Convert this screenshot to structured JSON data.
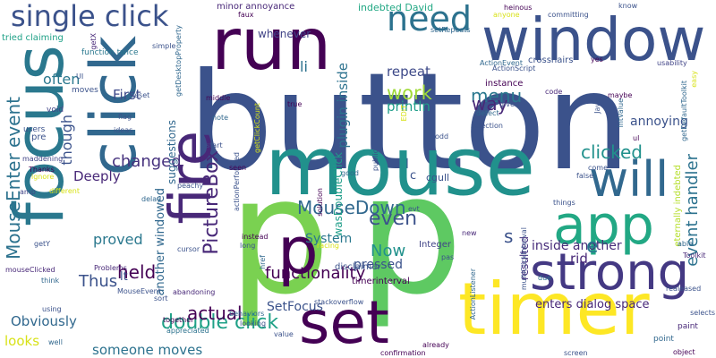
{
  "words": [
    {
      "text": "button",
      "color": "#3b528b",
      "orient": "h"
    },
    {
      "text": "p",
      "color": "#7ad151",
      "orient": "h"
    },
    {
      "text": "p",
      "color": "#5ec962",
      "orient": "h"
    },
    {
      "text": "mouse",
      "color": "#21918c",
      "orient": "h"
    },
    {
      "text": "timer",
      "color": "#fde725",
      "orient": "h"
    },
    {
      "text": "click",
      "color": "#31688e",
      "orient": "v"
    },
    {
      "text": "focus",
      "color": "#2a788e",
      "orient": "v"
    },
    {
      "text": "run",
      "color": "#440154",
      "orient": "h"
    },
    {
      "text": "window",
      "color": "#3b528b",
      "orient": "h"
    },
    {
      "text": "fire",
      "color": "#482878",
      "orient": "v"
    },
    {
      "text": "set",
      "color": "#440154",
      "orient": "h"
    },
    {
      "text": "app",
      "color": "#22a884",
      "orient": "h"
    },
    {
      "text": "strong",
      "color": "#443983",
      "orient": "h"
    },
    {
      "text": "will",
      "color": "#31688e",
      "orient": "h"
    },
    {
      "text": "need",
      "color": "#2c728e",
      "orient": "h"
    },
    {
      "text": "single click",
      "color": "#3b528b",
      "orient": "h"
    },
    {
      "text": "p",
      "color": "#440154",
      "orient": "h"
    },
    {
      "text": "double click",
      "color": "#1fa187",
      "orient": "h"
    },
    {
      "text": "MouseDown",
      "color": "#31688e",
      "orient": "h"
    },
    {
      "text": "even",
      "color": "#3b528b",
      "orient": "h"
    },
    {
      "text": "clicked",
      "color": "#21918c",
      "orient": "h"
    },
    {
      "text": "event handler",
      "color": "#2c728e",
      "orient": "v"
    },
    {
      "text": "work",
      "color": "#a0da39",
      "orient": "h"
    },
    {
      "text": "menu",
      "color": "#2a788e",
      "orient": "h"
    },
    {
      "text": "PictureBox",
      "color": "#482878",
      "orient": "v"
    },
    {
      "text": "MouseEnter event",
      "color": "#2c728e",
      "orient": "v"
    },
    {
      "text": "plugin inside",
      "color": "#2c728e",
      "orient": "v"
    },
    {
      "text": "held",
      "color": "#440154",
      "orient": "h"
    },
    {
      "text": "actual",
      "color": "#440154",
      "orient": "h"
    },
    {
      "text": "changed",
      "color": "#46327e",
      "orient": "h"
    },
    {
      "text": "Thus",
      "color": "#3b528b",
      "orient": "h"
    },
    {
      "text": "Now",
      "color": "#21918c",
      "orient": "h"
    },
    {
      "text": "functionality",
      "color": "#440154",
      "orient": "h"
    },
    {
      "text": "SetFocus",
      "color": "#3b528b",
      "orient": "h"
    },
    {
      "text": "proved",
      "color": "#2a788e",
      "orient": "h"
    },
    {
      "text": "Obviously",
      "color": "#31688e",
      "orient": "h"
    },
    {
      "text": "looks",
      "color": "#d8e219",
      "orient": "h"
    },
    {
      "text": "someone moves",
      "color": "#2c728e",
      "orient": "h"
    },
    {
      "text": "Deeply",
      "color": "#482878",
      "orient": "h"
    },
    {
      "text": "way",
      "color": "#482878",
      "orient": "h"
    },
    {
      "text": "repeat",
      "color": "#3e4a89",
      "orient": "h"
    },
    {
      "text": "annoying",
      "color": "#3b528b",
      "orient": "h"
    },
    {
      "text": "often",
      "color": "#2a788e",
      "orient": "h"
    },
    {
      "text": "li",
      "color": "#2c728e",
      "orient": "h"
    },
    {
      "text": "enters dialog space",
      "color": "#482878",
      "orient": "h"
    },
    {
      "text": "System",
      "color": "#2a788e",
      "orient": "h"
    },
    {
      "text": "pressed",
      "color": "#3b528b",
      "orient": "h"
    },
    {
      "text": "First",
      "color": "#3e4a89",
      "orient": "h"
    },
    {
      "text": "inside another",
      "color": "#472c7a",
      "orient": "h"
    },
    {
      "text": "rid",
      "color": "#482878",
      "orient": "h"
    },
    {
      "text": "e",
      "color": "#2a788e",
      "orient": "h"
    },
    {
      "text": "s",
      "color": "#3b528b",
      "orient": "h"
    },
    {
      "text": "lt",
      "color": "#3b528b",
      "orient": "h"
    },
    {
      "text": "println",
      "color": "#1f9e89",
      "orient": "h"
    },
    {
      "text": "though",
      "color": "#3b528b",
      "orient": "v"
    },
    {
      "text": "suggestions",
      "color": "#31688e",
      "orient": "v"
    },
    {
      "text": "another windowed",
      "color": "#31688e",
      "orient": "v"
    },
    {
      "text": "wasDoubleClick",
      "color": "#1f9e89",
      "orient": "v"
    },
    {
      "text": "resulted",
      "color": "#46327e",
      "orient": "v"
    },
    {
      "text": "whenever",
      "color": "#414487",
      "orient": "h"
    },
    {
      "text": "indebted David",
      "color": "#22a884",
      "orient": "h"
    },
    {
      "text": "minor annoyance",
      "color": "#482878",
      "orient": "h"
    },
    {
      "text": "tried claiming",
      "color": "#1fa187",
      "orient": "h"
    },
    {
      "text": "function twice",
      "color": "#2a788e",
      "orient": "h"
    },
    {
      "text": "instance",
      "color": "#440154",
      "orient": "h"
    },
    {
      "text": "timerinterval",
      "color": "#440154",
      "orient": "h"
    },
    {
      "text": "disclaimer",
      "color": "#3b528b",
      "orient": "h"
    },
    {
      "text": "Integer",
      "color": "#414487",
      "orient": "h"
    },
    {
      "text": "cgull",
      "color": "#3b528b",
      "orient": "h"
    },
    {
      "text": "c",
      "color": "#3b528b",
      "orient": "h"
    },
    {
      "text": "eternally indebted",
      "color": "#b5de2b",
      "orient": "v"
    },
    {
      "text": "moves",
      "color": "#3b528b",
      "orient": "h"
    },
    {
      "text": "void",
      "color": "#414487",
      "orient": "h"
    },
    {
      "text": "pre",
      "color": "#3b528b",
      "orient": "h"
    },
    {
      "text": "users",
      "color": "#3b528b",
      "orient": "h"
    },
    {
      "text": "maddening",
      "color": "#414487",
      "orient": "h"
    },
    {
      "text": "Thanks",
      "color": "#440154",
      "orient": "h"
    },
    {
      "text": "ignore",
      "color": "#d8e219",
      "orient": "h"
    },
    {
      "text": "amp",
      "color": "#414487",
      "orient": "h"
    },
    {
      "text": "different",
      "color": "#d8e219",
      "orient": "h"
    },
    {
      "text": "getY",
      "color": "#3b528b",
      "orient": "h"
    },
    {
      "text": "mouseClicked",
      "color": "#482878",
      "orient": "h"
    },
    {
      "text": "think",
      "color": "#31688e",
      "orient": "h"
    },
    {
      "text": "using",
      "color": "#3b528b",
      "orient": "h"
    },
    {
      "text": "well",
      "color": "#31688e",
      "orient": "h"
    },
    {
      "text": "Problems",
      "color": "#482878",
      "orient": "h"
    },
    {
      "text": "MouseEvent",
      "color": "#3b528b",
      "orient": "h"
    },
    {
      "text": "together",
      "color": "#440154",
      "orient": "h"
    },
    {
      "text": "appreciated",
      "color": "#2c728e",
      "orient": "h"
    },
    {
      "text": "abandoning",
      "color": "#482878",
      "orient": "h"
    },
    {
      "text": "sort",
      "color": "#3b528b",
      "orient": "h"
    },
    {
      "text": "behaviors",
      "color": "#31688e",
      "orient": "h"
    },
    {
      "text": "looking",
      "color": "#3b528b",
      "orient": "h"
    },
    {
      "text": "value",
      "color": "#3b528b",
      "orient": "h"
    },
    {
      "text": "already",
      "color": "#440154",
      "orient": "h"
    },
    {
      "text": "confirmation",
      "color": "#440154",
      "orient": "h"
    },
    {
      "text": "stackoverflow",
      "color": "#3b528b",
      "orient": "h"
    },
    {
      "text": "href",
      "color": "#31688e",
      "orient": "v"
    },
    {
      "text": "long",
      "color": "#3b528b",
      "orient": "h"
    },
    {
      "text": "instead",
      "color": "#440154",
      "orient": "h"
    },
    {
      "text": "cursor",
      "color": "#3b528b",
      "orient": "h"
    },
    {
      "text": "pas",
      "color": "#3b528b",
      "orient": "h"
    },
    {
      "text": "new",
      "color": "#482878",
      "orient": "h"
    },
    {
      "text": "racing",
      "color": "#d8e219",
      "orient": "h"
    },
    {
      "text": "due",
      "color": "#2c728e",
      "orient": "h"
    },
    {
      "text": "point",
      "color": "#31688e",
      "orient": "h"
    },
    {
      "text": "paint",
      "color": "#482878",
      "orient": "h"
    },
    {
      "text": "selects",
      "color": "#3b528b",
      "orient": "h"
    },
    {
      "text": "object",
      "color": "#440154",
      "orient": "h"
    },
    {
      "text": "screen",
      "color": "#3b528b",
      "orient": "h"
    },
    {
      "text": "realeased",
      "color": "#3b528b",
      "orient": "h"
    },
    {
      "text": "Toolkit",
      "color": "#482878",
      "orient": "h"
    },
    {
      "text": "able",
      "color": "#31688e",
      "orient": "h"
    },
    {
      "text": "things",
      "color": "#3b528b",
      "orient": "h"
    },
    {
      "text": "false",
      "color": "#3b528b",
      "orient": "h"
    },
    {
      "text": "come",
      "color": "#3b528b",
      "orient": "h"
    },
    {
      "text": "ul",
      "color": "#440154",
      "orient": "h"
    },
    {
      "text": "maybe",
      "color": "#440154",
      "orient": "h"
    },
    {
      "text": "intValue",
      "color": "#31688e",
      "orient": "v"
    },
    {
      "text": "Java",
      "color": "#3b528b",
      "orient": "v"
    },
    {
      "text": "code",
      "color": "#482878",
      "orient": "h"
    },
    {
      "text": "given",
      "color": "#3b528b",
      "orient": "h"
    },
    {
      "text": "ActionScript",
      "color": "#3b528b",
      "orient": "h"
    },
    {
      "text": "detect",
      "color": "#31688e",
      "orient": "h"
    },
    {
      "text": "selection",
      "color": "#3b528b",
      "orient": "h"
    },
    {
      "text": "odd",
      "color": "#3b528b",
      "orient": "h"
    },
    {
      "text": "usability",
      "color": "#414487",
      "orient": "h"
    },
    {
      "text": "easy",
      "color": "#d8e219",
      "orient": "v"
    },
    {
      "text": "getDefaultToolkit",
      "color": "#31688e",
      "orient": "v"
    },
    {
      "text": "know",
      "color": "#3b528b",
      "orient": "h"
    },
    {
      "text": "committing",
      "color": "#3b528b",
      "orient": "h"
    },
    {
      "text": "heinous",
      "color": "#440154",
      "orient": "h"
    },
    {
      "text": "anyone",
      "color": "#d8e219",
      "orient": "h"
    },
    {
      "text": "setRepeats",
      "color": "#31688e",
      "orient": "h"
    },
    {
      "text": "ActionEvent",
      "color": "#31688e",
      "orient": "h"
    },
    {
      "text": "crosshairs",
      "color": "#3b528b",
      "orient": "h"
    },
    {
      "text": "yes",
      "color": "#440154",
      "orient": "h"
    },
    {
      "text": "faux",
      "color": "#440154",
      "orient": "h"
    },
    {
      "text": "simple",
      "color": "#3b528b",
      "orient": "h"
    },
    {
      "text": "getDesktopProperty",
      "color": "#31688e",
      "orient": "v"
    },
    {
      "text": "getClickCount",
      "color": "#d8e219",
      "orient": "v"
    },
    {
      "text": "actionPerformed",
      "color": "#3b528b",
      "orient": "v"
    },
    {
      "text": "EDIT",
      "color": "#d8e219",
      "orient": "v"
    },
    {
      "text": "ActionListener",
      "color": "#31688e",
      "orient": "v"
    },
    {
      "text": "multiClickInterval",
      "color": "#3b528b",
      "orient": "v"
    },
    {
      "text": "getX",
      "color": "#482878",
      "orient": "v"
    },
    {
      "text": "UI",
      "color": "#3b528b",
      "orient": "h"
    },
    {
      "text": "ideas",
      "color": "#3b528b",
      "orient": "h"
    },
    {
      "text": "flag",
      "color": "#3b528b",
      "orient": "h"
    },
    {
      "text": "reset",
      "color": "#3b528b",
      "orient": "h"
    },
    {
      "text": "middle",
      "color": "#440154",
      "orient": "h"
    },
    {
      "text": "note",
      "color": "#31688e",
      "orient": "h"
    },
    {
      "text": "true",
      "color": "#440154",
      "orient": "h"
    },
    {
      "text": "start",
      "color": "#3b528b",
      "orient": "h"
    },
    {
      "text": "seen",
      "color": "#440154",
      "orient": "h"
    },
    {
      "text": "peachy",
      "color": "#3b528b",
      "orient": "h"
    },
    {
      "text": "delay",
      "color": "#31688e",
      "orient": "h"
    },
    {
      "text": "good",
      "color": "#31688e",
      "orient": "h"
    },
    {
      "text": "public",
      "color": "#3b528b",
      "orient": "v"
    },
    {
      "text": "solution",
      "color": "#440154",
      "orient": "v"
    },
    {
      "text": "evt",
      "color": "#3b528b",
      "orient": "h"
    }
  ]
}
